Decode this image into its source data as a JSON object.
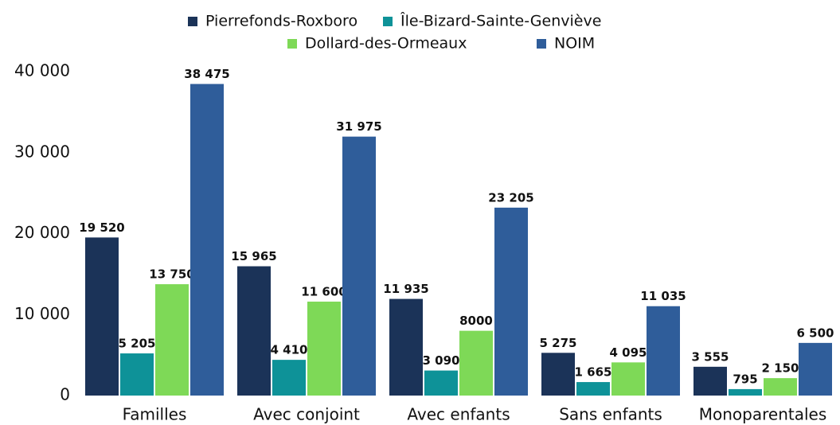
{
  "chart_data": {
    "type": "bar",
    "categories": [
      "Familles",
      "Avec conjoint",
      "Avec enfants",
      "Sans enfants",
      "Monoparentales"
    ],
    "series": [
      {
        "name": "Pierrefonds-Roxboro",
        "color": "#1b3358",
        "values": [
          19520,
          15965,
          11935,
          5275,
          3555
        ],
        "value_labels": [
          "19 520",
          "15 965",
          "11 935",
          "5 275",
          "3 555"
        ]
      },
      {
        "name": "Île-Bizard-Sainte-Genviève",
        "color": "#0e9298",
        "values": [
          5205,
          4410,
          3090,
          1665,
          795
        ],
        "value_labels": [
          "5 205",
          "4 410",
          "3 090",
          "1 665",
          "795"
        ]
      },
      {
        "name": "Dollard-des-Ormeaux",
        "color": "#7ed957",
        "values": [
          13750,
          11600,
          8000,
          4095,
          2150
        ],
        "value_labels": [
          "13 750",
          "11 600",
          "8000",
          "4 095",
          "2 150"
        ]
      },
      {
        "name": "NOIM",
        "color": "#2f5d9a",
        "values": [
          38475,
          31975,
          23205,
          11035,
          6500
        ],
        "value_labels": [
          "38 475",
          "31 975",
          "23 205",
          "11 035",
          "6 500"
        ]
      }
    ],
    "ylim": [
      0,
      40000
    ],
    "yticks": [
      0,
      {
        "value": 10000,
        "label": "10 000"
      },
      {
        "value": 20000,
        "label": "20 000"
      },
      {
        "value": 30000,
        "label": "30 000"
      },
      {
        "value": 40000,
        "label": "40 000"
      }
    ],
    "legend": "top"
  }
}
